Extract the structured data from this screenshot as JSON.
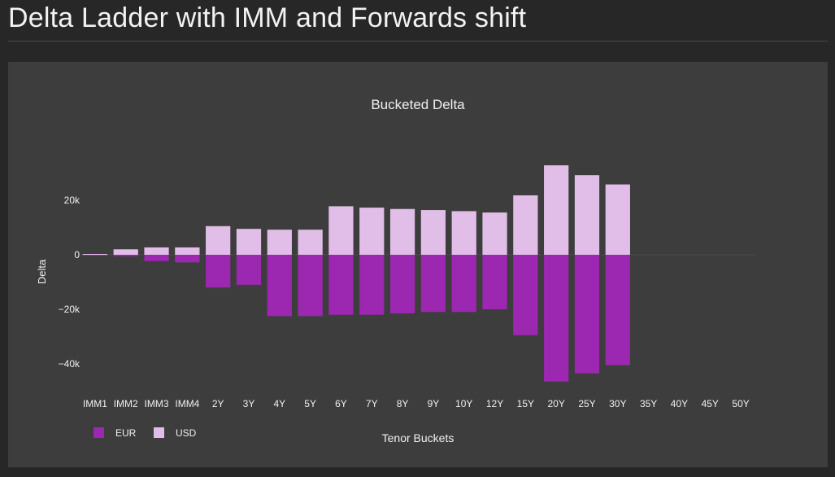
{
  "page": {
    "title": "Delta Ladder with IMM and Forwards shift"
  },
  "colors": {
    "eur": "#9c27b0",
    "usd": "#e1bee7",
    "panel": "#3d3d3d",
    "background": "#272727",
    "text": "#f0f0f0"
  },
  "chart_data": {
    "type": "bar",
    "title": "Bucketed Delta",
    "xlabel": "Tenor Buckets",
    "ylabel": "Delta",
    "barmode": "relative",
    "categories": [
      "IMM1",
      "IMM2",
      "IMM3",
      "IMM4",
      "2Y",
      "3Y",
      "4Y",
      "5Y",
      "6Y",
      "7Y",
      "8Y",
      "9Y",
      "10Y",
      "12Y",
      "15Y",
      "20Y",
      "25Y",
      "30Y",
      "35Y",
      "40Y",
      "45Y",
      "50Y"
    ],
    "series": [
      {
        "name": "EUR",
        "color": "#9c27b0",
        "values": [
          -300,
          -500,
          -2300,
          -2800,
          -12000,
          -11000,
          -22500,
          -22500,
          -22000,
          -22000,
          -21500,
          -21000,
          -21000,
          -20000,
          -29500,
          -46500,
          -43500,
          -40500,
          0,
          0,
          0,
          0
        ]
      },
      {
        "name": "USD",
        "color": "#e1bee7",
        "values": [
          300,
          2000,
          2700,
          2700,
          10500,
          9500,
          9200,
          9200,
          17800,
          17300,
          16800,
          16400,
          16000,
          15500,
          21800,
          32800,
          29200,
          25800,
          0,
          0,
          0,
          0
        ]
      }
    ],
    "yticks": [
      -40000,
      -20000,
      0,
      20000
    ],
    "ytick_labels": [
      "−40k",
      "−20k",
      "0",
      "20k"
    ],
    "ylim": [
      -50000,
      36000
    ],
    "grid": false,
    "legend": {
      "placement": "bottom-left",
      "orientation": "horizontal"
    }
  }
}
